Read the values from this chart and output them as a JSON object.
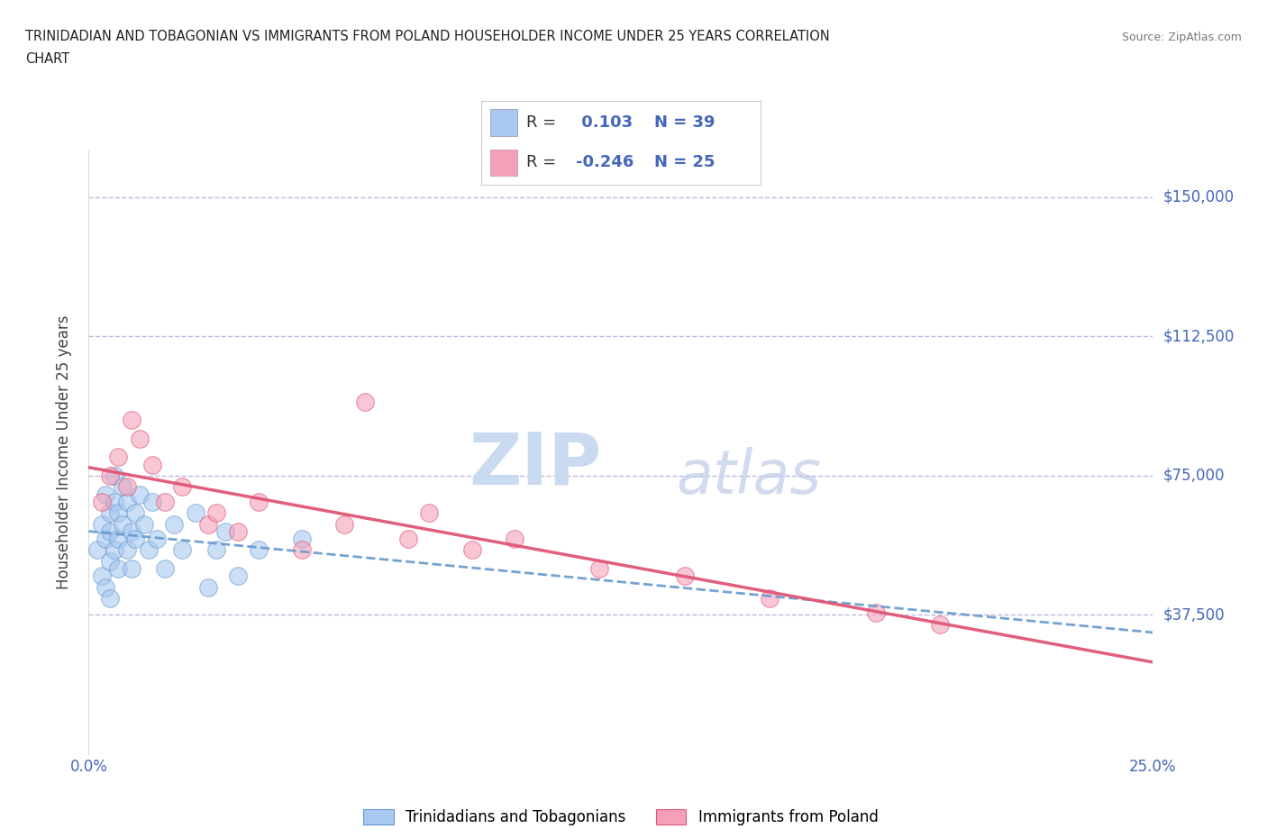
{
  "title_line1": "TRINIDADIAN AND TOBAGONIAN VS IMMIGRANTS FROM POLAND HOUSEHOLDER INCOME UNDER 25 YEARS CORRELATION",
  "title_line2": "CHART",
  "source": "Source: ZipAtlas.com",
  "ylabel": "Householder Income Under 25 years",
  "xlim": [
    0.0,
    0.25
  ],
  "ylim": [
    0,
    162500
  ],
  "yticks": [
    0,
    37500,
    75000,
    112500,
    150000
  ],
  "ytick_labels": [
    "",
    "$37,500",
    "$75,000",
    "$112,500",
    "$150,000"
  ],
  "xticks": [
    0.0,
    0.05,
    0.1,
    0.15,
    0.2,
    0.25
  ],
  "xtick_labels": [
    "0.0%",
    "",
    "",
    "",
    "",
    "25.0%"
  ],
  "group1_color": "#a8c8f0",
  "group2_color": "#f4a0b8",
  "line1_color": "#6699cc",
  "line2_color": "#e05575",
  "R1": 0.103,
  "N1": 39,
  "R2": -0.246,
  "N2": 25,
  "legend_label1": "Trinidadians and Tobagonians",
  "legend_label2": "Immigrants from Poland",
  "watermark_zip": "ZIP",
  "watermark_atlas": "atlas",
  "background_color": "#ffffff",
  "grid_color": "#bbbbdd",
  "axis_label_color": "#4466bb",
  "scatter1_x": [
    0.002,
    0.003,
    0.003,
    0.004,
    0.004,
    0.004,
    0.005,
    0.005,
    0.005,
    0.005,
    0.006,
    0.006,
    0.006,
    0.007,
    0.007,
    0.007,
    0.008,
    0.008,
    0.009,
    0.009,
    0.01,
    0.01,
    0.011,
    0.011,
    0.012,
    0.013,
    0.014,
    0.015,
    0.016,
    0.018,
    0.02,
    0.022,
    0.025,
    0.028,
    0.03,
    0.032,
    0.035,
    0.04,
    0.05
  ],
  "scatter1_y": [
    55000,
    62000,
    48000,
    70000,
    58000,
    45000,
    65000,
    52000,
    60000,
    42000,
    68000,
    55000,
    75000,
    58000,
    65000,
    50000,
    72000,
    62000,
    55000,
    68000,
    60000,
    50000,
    65000,
    58000,
    70000,
    62000,
    55000,
    68000,
    58000,
    50000,
    62000,
    55000,
    65000,
    45000,
    55000,
    60000,
    48000,
    55000,
    58000
  ],
  "scatter2_x": [
    0.003,
    0.005,
    0.007,
    0.009,
    0.01,
    0.012,
    0.015,
    0.018,
    0.022,
    0.028,
    0.03,
    0.035,
    0.04,
    0.05,
    0.06,
    0.065,
    0.075,
    0.08,
    0.09,
    0.1,
    0.12,
    0.14,
    0.16,
    0.185,
    0.2
  ],
  "scatter2_y": [
    68000,
    75000,
    80000,
    72000,
    90000,
    85000,
    78000,
    68000,
    72000,
    62000,
    65000,
    60000,
    68000,
    55000,
    62000,
    95000,
    58000,
    65000,
    55000,
    58000,
    50000,
    48000,
    42000,
    38000,
    35000
  ]
}
